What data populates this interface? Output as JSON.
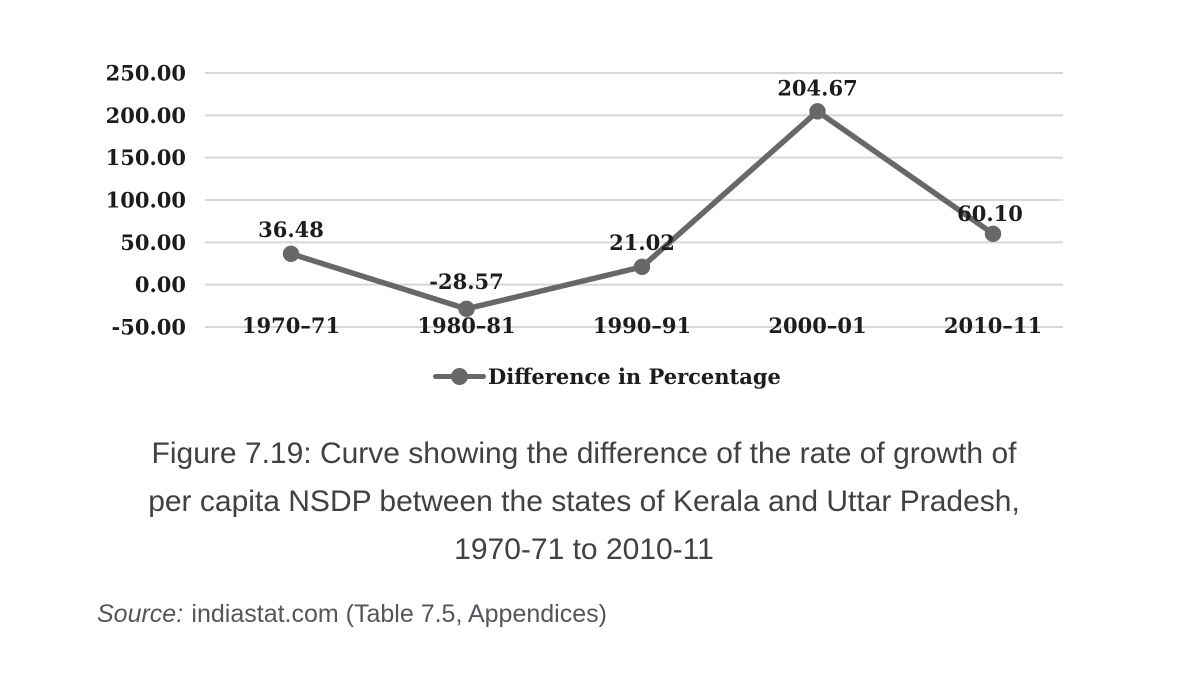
{
  "chart_data": {
    "type": "line",
    "categories": [
      "1970–71",
      "1980–81",
      "1990–91",
      "2000–01",
      "2010–11"
    ],
    "series": [
      {
        "name": "Difference in Percentage",
        "values": [
          36.48,
          -28.57,
          21.02,
          204.67,
          60.1
        ]
      }
    ],
    "data_labels": [
      "36.48",
      "-28.57",
      "21.02",
      "204.67",
      "60.10"
    ],
    "y_ticks": [
      {
        "value": 250,
        "label": "250.00"
      },
      {
        "value": 200,
        "label": "200.00"
      },
      {
        "value": 150,
        "label": "150.00"
      },
      {
        "value": 100,
        "label": "100.00"
      },
      {
        "value": 50,
        "label": "50.00"
      },
      {
        "value": 0,
        "label": "0.00"
      },
      {
        "value": -50,
        "label": "-50.00"
      }
    ],
    "ylim": [
      -50,
      250
    ],
    "grid": true,
    "legend": {
      "position": "bottom",
      "label": "Difference in Percentage"
    },
    "colors": {
      "line": "#686868",
      "marker": "#686868",
      "grid": "#d8d8d8",
      "chart_text": "#1c1c1c"
    }
  },
  "figure_caption": {
    "lines": [
      "Figure 7.19: Curve showing the difference of the rate of growth of",
      "per capita NSDP between the states of Kerala and Uttar Pradesh,",
      "1970-71 to 2010-11"
    ]
  },
  "source": {
    "prefix": "Source:",
    "text": "indiastat.com (Table 7.5, Appendices)"
  }
}
